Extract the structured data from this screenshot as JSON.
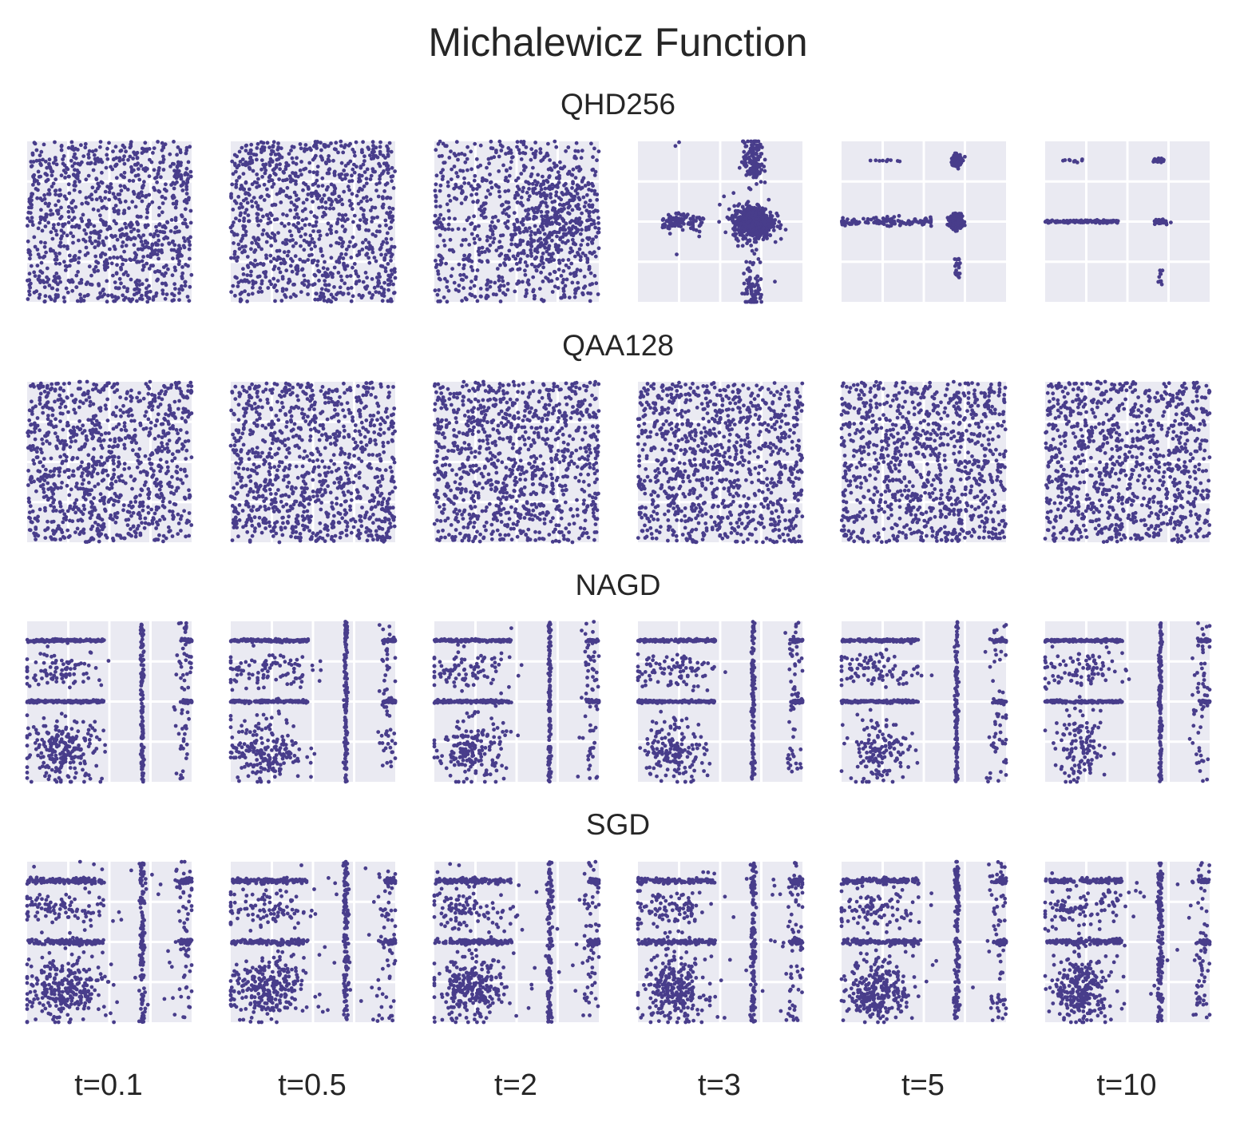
{
  "chart_data": {
    "type": "scatter",
    "title": "Michalewicz Function",
    "columns": [
      "t=0.1",
      "t=0.5",
      "t=2",
      "t=3",
      "t=5",
      "t=10"
    ],
    "xlim": [
      0,
      1
    ],
    "ylim": [
      0,
      1
    ],
    "grid": true,
    "rows": [
      {
        "name": "QHD256",
        "panels": [
          {
            "t": "t=0.1",
            "points": 1000,
            "pattern": "uniform"
          },
          {
            "t": "t=0.5",
            "points": 1000,
            "pattern": "uniform"
          },
          {
            "t": "t=2",
            "points": 1000,
            "pattern": "uniform with cluster near (0.72, 0.5)"
          },
          {
            "t": "t=3",
            "points": 1000,
            "pattern": "dense cluster at (0.72, 0.5), vertical spread x=0.72, horizontal spread y=0.5"
          },
          {
            "t": "t=5",
            "points": 1000,
            "pattern": "tight clusters at (0.7, 0.5) and (0.7, 0.88), line y=0.5"
          },
          {
            "t": "t=10",
            "points": 1000,
            "pattern": "concentrated along y=0.5 and y=0.88 near x=0.7"
          }
        ]
      },
      {
        "name": "QAA128",
        "panels": [
          {
            "t": "t=0.1",
            "points": 1000,
            "pattern": "uniform"
          },
          {
            "t": "t=0.5",
            "points": 1000,
            "pattern": "uniform"
          },
          {
            "t": "t=2",
            "points": 1000,
            "pattern": "uniform"
          },
          {
            "t": "t=3",
            "points": 1000,
            "pattern": "uniform"
          },
          {
            "t": "t=5",
            "points": 1000,
            "pattern": "uniform"
          },
          {
            "t": "t=10",
            "points": 1000,
            "pattern": "uniform"
          }
        ]
      },
      {
        "name": "NAGD",
        "panels": [
          {
            "t": "t=0.1",
            "points": 1000,
            "pattern": "lines y=0.88, y=0.5; line x=0.7; blob near (0.2, 0.2)"
          },
          {
            "t": "t=0.5",
            "points": 1000,
            "pattern": "lines y=0.88, y=0.5; line x=0.7; blob near (0.2, 0.2)"
          },
          {
            "t": "t=2",
            "points": 1000,
            "pattern": "lines y=0.88, y=0.5; line x=0.7; blob near (0.2, 0.2)"
          },
          {
            "t": "t=3",
            "points": 1000,
            "pattern": "lines y=0.88, y=0.5; line x=0.7; blob near (0.2, 0.2)"
          },
          {
            "t": "t=5",
            "points": 1000,
            "pattern": "lines y=0.88, y=0.5; line x=0.7; blob near (0.2, 0.2)"
          },
          {
            "t": "t=10",
            "points": 1000,
            "pattern": "lines y=0.88, y=0.5; line x=0.7; blob near (0.2, 0.2)"
          }
        ]
      },
      {
        "name": "SGD",
        "panels": [
          {
            "t": "t=0.1",
            "points": 1000,
            "pattern": "lines y=0.88, y=0.5; line x=0.7; scattered blobs"
          },
          {
            "t": "t=0.5",
            "points": 1000,
            "pattern": "lines y=0.88, y=0.5; line x=0.7; scattered blobs"
          },
          {
            "t": "t=2",
            "points": 1000,
            "pattern": "lines y=0.88, y=0.5; line x=0.7; scattered blobs"
          },
          {
            "t": "t=3",
            "points": 1000,
            "pattern": "lines y=0.88, y=0.5; line x=0.7; scattered blobs"
          },
          {
            "t": "t=5",
            "points": 1000,
            "pattern": "lines y=0.88, y=0.5; line x=0.7; scattered blobs"
          },
          {
            "t": "t=10",
            "points": 1000,
            "pattern": "lines y=0.88, y=0.5; line x=0.7; scattered blobs"
          }
        ]
      }
    ]
  },
  "colors": {
    "points": "#483d8b",
    "panel_bg": "#eaeaf2",
    "grid": "#ffffff",
    "text": "#262626"
  }
}
